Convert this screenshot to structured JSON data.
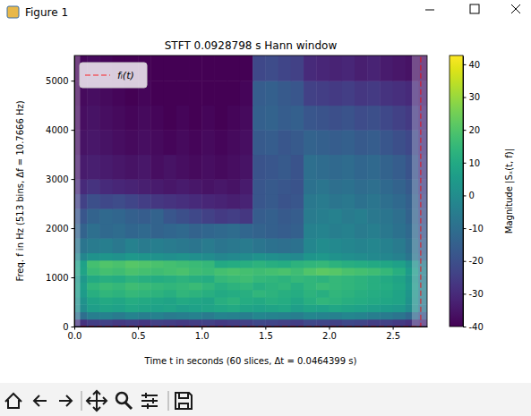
{
  "window": {
    "title": "Figure 1"
  },
  "chart_data": {
    "type": "heatmap",
    "title": "STFT 0.0928798 s Hann window",
    "x_label": "Time t in seconds (60 slices, Δt = 0.0464399 s)",
    "y_label": "Freq. f in Hz (513 bins, Δf = 10.7666 Hz)",
    "color": "viridis",
    "legend": "upper left",
    "xlim": [
      0,
      2.77
    ],
    "ylim": [
      0,
      5512.5
    ],
    "xticks": [
      {
        "value": 0,
        "label": "0.0"
      },
      {
        "value": 0.5,
        "label": "0.5"
      },
      {
        "value": 1,
        "label": "1.0"
      },
      {
        "value": 1.5,
        "label": "1.5"
      },
      {
        "value": 2,
        "label": "2.0"
      },
      {
        "value": 2.5,
        "label": "2.5"
      }
    ],
    "yticks": [
      0,
      1000,
      2000,
      3000,
      4000,
      5000
    ],
    "x_edges": [
      0,
      0.1,
      0.2,
      0.3,
      0.4,
      0.5,
      0.6,
      0.7,
      0.8,
      0.9,
      1.0,
      1.1,
      1.2,
      1.3,
      1.4,
      1.5,
      1.6,
      1.7,
      1.8,
      1.9,
      2.0,
      2.1,
      2.2,
      2.3,
      2.4,
      2.5,
      2.6,
      2.7,
      2.77
    ],
    "y_edges": [
      0,
      150,
      300,
      450,
      600,
      750,
      900,
      1050,
      1200,
      1350,
      1500,
      1800,
      2100,
      2400,
      2700,
      3000,
      3500,
      4000,
      4500,
      5000,
      5512.5
    ],
    "cells": [
      [
        -28,
        -25,
        -24,
        -26,
        -25,
        -27,
        -24,
        -25,
        -26,
        -25,
        -24,
        -26,
        -25,
        -24,
        -22,
        -23,
        -24,
        -25,
        -22,
        -23,
        -24,
        -22,
        -23,
        -25,
        -24,
        -26,
        -28,
        -30
      ],
      [
        -10,
        -5,
        -4,
        -6,
        -3,
        -5,
        -4,
        -6,
        -5,
        -4,
        -6,
        -3,
        -4,
        -5,
        -2,
        -3,
        -4,
        -5,
        -2,
        -3,
        -4,
        -2,
        -3,
        -5,
        -6,
        -8,
        -12,
        -18
      ],
      [
        0,
        6,
        8,
        7,
        9,
        8,
        7,
        8,
        6,
        7,
        8,
        9,
        10,
        8,
        7,
        8,
        9,
        6,
        8,
        7,
        9,
        8,
        7,
        6,
        5,
        4,
        0,
        -8
      ],
      [
        2,
        8,
        10,
        9,
        11,
        10,
        9,
        8,
        10,
        9,
        8,
        12,
        13,
        11,
        10,
        12,
        11,
        9,
        12,
        14,
        13,
        12,
        11,
        10,
        9,
        8,
        2,
        -6
      ],
      [
        5,
        12,
        14,
        13,
        15,
        14,
        13,
        12,
        14,
        13,
        12,
        10,
        11,
        12,
        14,
        13,
        12,
        11,
        13,
        12,
        14,
        13,
        12,
        11,
        10,
        8,
        3,
        -5
      ],
      [
        6,
        14,
        16,
        15,
        17,
        16,
        15,
        14,
        15,
        16,
        14,
        12,
        13,
        14,
        12,
        13,
        14,
        12,
        14,
        16,
        15,
        14,
        13,
        12,
        11,
        9,
        4,
        -4
      ],
      [
        4,
        10,
        12,
        11,
        13,
        12,
        11,
        12,
        13,
        12,
        11,
        15,
        16,
        17,
        15,
        14,
        13,
        15,
        14,
        13,
        15,
        14,
        13,
        12,
        10,
        8,
        3,
        -6
      ],
      [
        8,
        16,
        18,
        17,
        19,
        18,
        17,
        18,
        19,
        17,
        16,
        18,
        19,
        18,
        17,
        18,
        19,
        17,
        20,
        22,
        21,
        19,
        18,
        17,
        15,
        12,
        5,
        -4
      ],
      [
        7,
        18,
        20,
        19,
        21,
        20,
        19,
        18,
        17,
        16,
        15,
        10,
        11,
        12,
        13,
        12,
        11,
        13,
        14,
        15,
        13,
        12,
        11,
        10,
        9,
        7,
        2,
        -6
      ],
      [
        -2,
        2,
        3,
        2,
        4,
        3,
        2,
        1,
        2,
        1,
        0,
        -2,
        -1,
        0,
        2,
        1,
        0,
        -1,
        3,
        4,
        2,
        1,
        0,
        -1,
        -2,
        -4,
        -8,
        -14
      ],
      [
        -8,
        -6,
        -5,
        -7,
        -4,
        -6,
        -5,
        -6,
        -7,
        -8,
        -6,
        -8,
        -7,
        -6,
        -8,
        -9,
        -10,
        -9,
        -2,
        0,
        -1,
        -2,
        -3,
        -2,
        -4,
        -6,
        -10,
        -16
      ],
      [
        -14,
        -10,
        -12,
        -11,
        -13,
        -12,
        -14,
        -13,
        -12,
        -14,
        -13,
        -12,
        -11,
        -13,
        -14,
        -15,
        -16,
        -15,
        -4,
        -3,
        -5,
        -4,
        -6,
        -5,
        -7,
        -9,
        -12,
        -18
      ],
      [
        -18,
        -14,
        -12,
        -13,
        -15,
        -16,
        -14,
        -18,
        -20,
        -22,
        -24,
        -26,
        -25,
        -27,
        -16,
        -15,
        -17,
        -16,
        -6,
        -5,
        -4,
        -6,
        -5,
        -7,
        -8,
        -10,
        -14,
        -20
      ],
      [
        -24,
        -20,
        -22,
        -21,
        -23,
        -25,
        -27,
        -28,
        -29,
        -30,
        -31,
        -32,
        -33,
        -32,
        -18,
        -17,
        -19,
        -18,
        -7,
        -6,
        -8,
        -7,
        -9,
        -8,
        -10,
        -12,
        -15,
        -22
      ],
      [
        -30,
        -28,
        -30,
        -31,
        -32,
        -33,
        -34,
        -35,
        -34,
        -35,
        -36,
        -35,
        -36,
        -34,
        -18,
        -17,
        -18,
        -19,
        -9,
        -8,
        -10,
        -9,
        -11,
        -10,
        -12,
        -14,
        -17,
        -24
      ],
      [
        -34,
        -33,
        -34,
        -35,
        -36,
        -35,
        -37,
        -36,
        -37,
        -38,
        -37,
        -38,
        -37,
        -36,
        -19,
        -18,
        -17,
        -19,
        -10,
        -11,
        -12,
        -11,
        -13,
        -12,
        -14,
        -16,
        -19,
        -26
      ],
      [
        -36,
        -35,
        -36,
        -37,
        -38,
        -37,
        -38,
        -39,
        -38,
        -39,
        -38,
        -39,
        -38,
        -37,
        -17,
        -16,
        -18,
        -17,
        -14,
        -15,
        -16,
        -15,
        -17,
        -16,
        -18,
        -20,
        -22,
        -28
      ],
      [
        -37,
        -36,
        -37,
        -38,
        -39,
        -38,
        -39,
        -40,
        -39,
        -40,
        -39,
        -40,
        -39,
        -38,
        -15,
        -14,
        -16,
        -15,
        -18,
        -19,
        -20,
        -19,
        -21,
        -20,
        -22,
        -24,
        -26,
        -30
      ],
      [
        -38,
        -37,
        -38,
        -39,
        -40,
        -39,
        -40,
        -40,
        -40,
        -40,
        -40,
        -40,
        -40,
        -39,
        -16,
        -15,
        -17,
        -18,
        -24,
        -25,
        -26,
        -25,
        -27,
        -26,
        -28,
        -29,
        -30,
        -33
      ],
      [
        -39,
        -38,
        -39,
        -40,
        -40,
        -40,
        -40,
        -40,
        -40,
        -40,
        -40,
        -40,
        -40,
        -40,
        -22,
        -21,
        -23,
        -24,
        -30,
        -31,
        -32,
        -31,
        -33,
        -32,
        -34,
        -35,
        -36,
        -37
      ]
    ],
    "colorbar": {
      "label": "Magnitude |Sₓ(t, f)|",
      "range": [
        -40,
        42.7
      ],
      "ticks": [
        -40,
        -30,
        -20,
        -10,
        0,
        10,
        20,
        30,
        40
      ]
    },
    "shaded_x": [
      [
        0,
        0.046
      ],
      [
        2.65,
        2.77
      ]
    ],
    "series": [
      {
        "name": "fᵢ(t)",
        "color": "#ff0000",
        "line_style": "dashed",
        "x": [
          0.05,
          2.72,
          2.72
        ],
        "values": [
          0,
          0,
          5512.5
        ]
      }
    ]
  }
}
